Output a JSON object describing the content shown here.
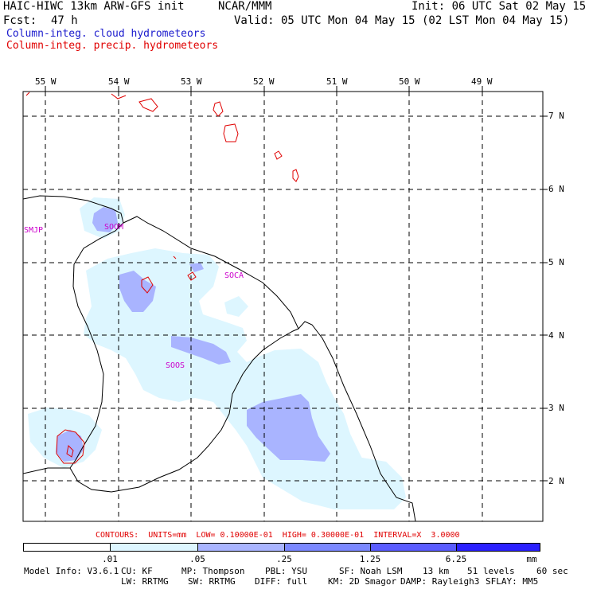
{
  "header": {
    "model_title": "HAIC-HIWC 13km ARW-GFS init",
    "center": "NCAR/MMM",
    "init_label": "Init: 06 UTC Sat 02 May 15",
    "fcst_label": "Fcst:",
    "fcst_hours": "47 h",
    "valid_label": "Valid: 05 UTC Mon 04 May 15 (02 LST Mon 04 May 15)",
    "field_1": "Column-integ. cloud hydrometeors",
    "field_1_color": "#1a1acd",
    "field_2": "Column-integ. precip. hydrometeors",
    "field_2_color": "#e00000"
  },
  "map": {
    "lon_labels": [
      "55 W",
      "54 W",
      "53 W",
      "52 W",
      "51 W",
      "50 W",
      "49 W"
    ],
    "lat_labels": [
      "7 N",
      "6 N",
      "5 N",
      "4 N",
      "3 N",
      "2 N"
    ],
    "stations": [
      "SMJP",
      "SOOM",
      "SOCA",
      "SOOS"
    ],
    "station_color": "#cc00cc",
    "coast_color": "#000000",
    "grid_color": "#000000",
    "cloud_fill_light": "#ddf6ff",
    "cloud_fill_mid": "#a9b4ff",
    "precip_contour_color": "#e00000"
  },
  "colorbar": {
    "contours_text": "CONTOURS:  UNITS=mm  LOW= 0.10000E-01  HIGH= 0.30000E-01  INTERVAL=X  3.0000",
    "contours_color": "#e00000",
    "tick_labels": [
      ".01",
      ".05",
      ".25",
      "1.25",
      "6.25"
    ],
    "units": "mm",
    "colors": [
      "#ffffff",
      "#ddf6ff",
      "#a9b4ff",
      "#7b88ff",
      "#5a5cff",
      "#2a20ff",
      "#0000e8"
    ]
  },
  "model_info": {
    "line1": [
      "Model Info: V3.6.1",
      "CU: KF",
      "MP: Thompson",
      "PBL: YSU",
      "SF: Noah LSM",
      "13 km",
      "51 levels",
      "60 sec"
    ],
    "line2": [
      "LW: RRTMG",
      "SW: RRTMG",
      "DIFF: full",
      "KM: 2D Smagor",
      "DAMP: Rayleigh3",
      "SFLAY: MM5"
    ]
  }
}
